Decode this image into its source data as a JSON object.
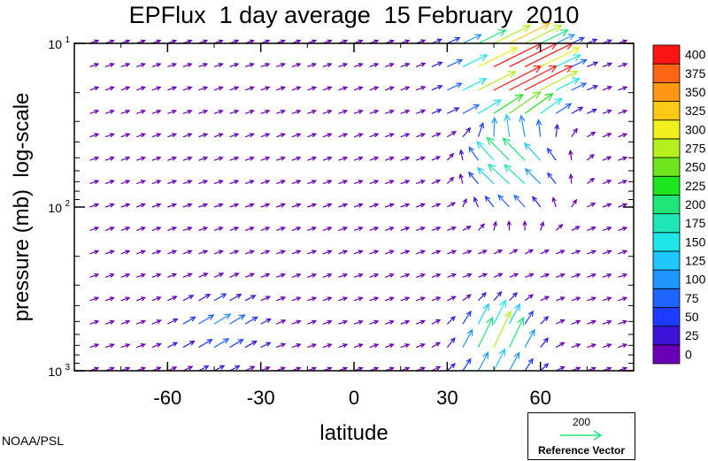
{
  "chart_data": {
    "type": "vector-field",
    "title": "EPFlux  1 day average  15 February  2010",
    "xlabel": "latitude",
    "ylabel": "pressure (mb)  log-scale",
    "x_ticks": [
      -60,
      -30,
      0,
      30,
      60
    ],
    "y_ticks": [
      {
        "value": 10,
        "label": "10",
        "sup": "1"
      },
      {
        "value": 100,
        "label": "10",
        "sup": "2"
      },
      {
        "value": 1000,
        "label": "10",
        "sup": "3"
      }
    ],
    "xlim": [
      -90,
      90
    ],
    "ylim": [
      1000,
      10
    ],
    "y_scale": "log",
    "colorbar": {
      "levels": [
        0,
        25,
        50,
        75,
        100,
        125,
        150,
        175,
        200,
        225,
        250,
        275,
        300,
        325,
        350,
        375,
        400
      ],
      "colors": [
        "#6a00b8",
        "#3c14d8",
        "#1e3cff",
        "#1e64ff",
        "#1e96ff",
        "#1ec8ff",
        "#1ee6e6",
        "#1ee6b4",
        "#1ee678",
        "#1ee61e",
        "#6ee61e",
        "#b4f01e",
        "#f0f01e",
        "#ffc814",
        "#ff9614",
        "#ff6414",
        "#ff1414"
      ]
    },
    "reference_vector": {
      "magnitude": "200",
      "label": "Reference Vector",
      "color": "#1ee678"
    },
    "note": "Strong poleward-upward flux in northern mid/high latitudes (30N-75N) at 10-30 mb (>400); moderate flux 40N-65N near 700-1000 mb; weak flux elsewhere."
  },
  "credit": "NOAA/PSL"
}
